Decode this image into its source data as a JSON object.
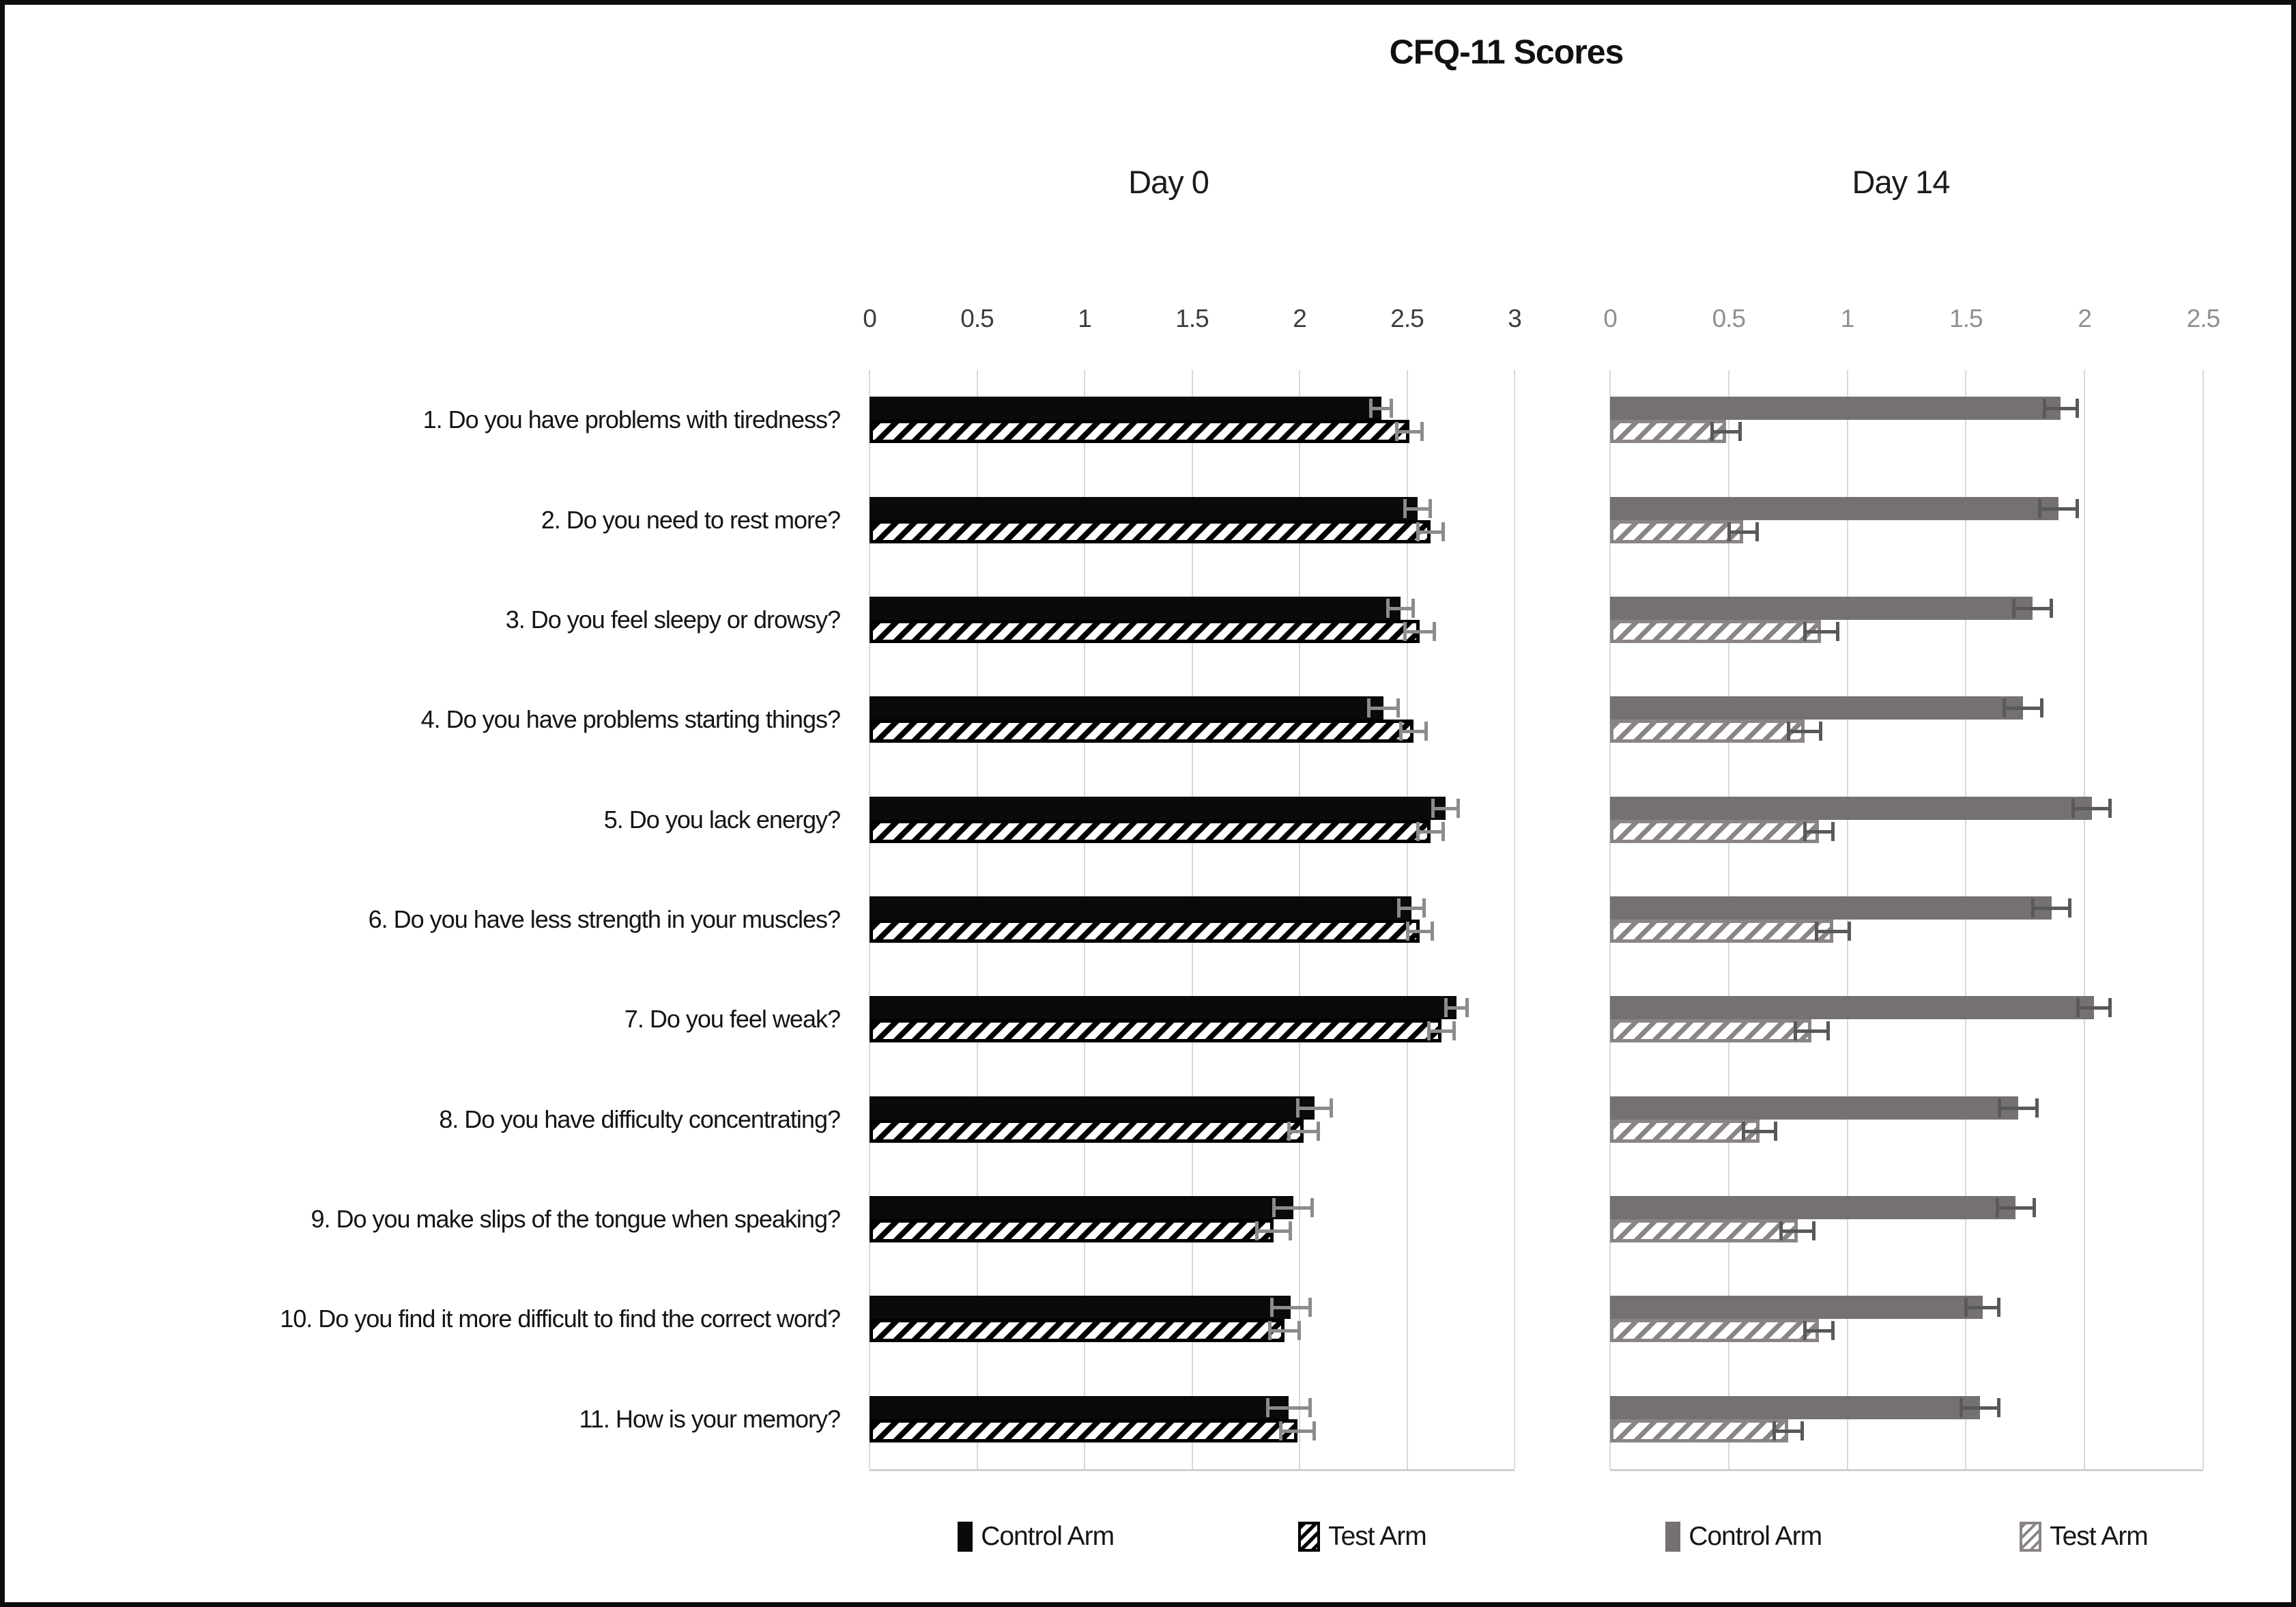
{
  "header": {
    "title": "CFQ-11 Scores"
  },
  "colors": {
    "day0_control_bar": "#0a0a0a",
    "day0_hatch": "#000000",
    "day14_control_bar": "#767171",
    "day14_hatch": "#8a8484",
    "day0_error_bar": "#8c8c8c",
    "day14_error_bar": "#595959",
    "gridline": "#d9d9d9",
    "day0_tick_text": "#3c3c3c",
    "day14_tick_text": "#8f8f8f"
  },
  "chart_data": [
    {
      "type": "bar",
      "orientation": "horizontal",
      "panel": "Day 0",
      "grid": true,
      "legend_position": "bottom",
      "xlim": [
        0,
        3
      ],
      "xticks": [
        0,
        0.5,
        1,
        1.5,
        2,
        2.5,
        3
      ],
      "xtick_labels": [
        "0",
        "0.5",
        "1",
        "1.5",
        "2",
        "2.5",
        "3"
      ],
      "categories": [
        "1. Do you have problems with tiredness?",
        "2. Do you need to rest more?",
        "3. Do you feel sleepy or drowsy?",
        "4. Do you have problems starting things?",
        "5. Do you lack energy?",
        "6. Do you have less strength in your muscles?",
        "7. Do you feel weak?",
        "8. Do you have difficulty concentrating?",
        "9. Do you make slips of the tongue when speaking?",
        "10. Do you find it more difficult to find the correct word?",
        "11. How is your memory?"
      ],
      "series": [
        {
          "name": "Control Arm",
          "style": "solid-black",
          "values": [
            2.38,
            2.55,
            2.47,
            2.39,
            2.68,
            2.52,
            2.73,
            2.07,
            1.97,
            1.96,
            1.95
          ],
          "errors": [
            0.05,
            0.06,
            0.06,
            0.07,
            0.06,
            0.06,
            0.05,
            0.08,
            0.09,
            0.09,
            0.1
          ]
        },
        {
          "name": "Test Arm",
          "style": "black-diagonal-hatch",
          "values": [
            2.51,
            2.61,
            2.56,
            2.53,
            2.61,
            2.56,
            2.66,
            2.02,
            1.88,
            1.93,
            1.99
          ],
          "errors": [
            0.06,
            0.06,
            0.07,
            0.06,
            0.06,
            0.06,
            0.06,
            0.07,
            0.08,
            0.07,
            0.08
          ]
        }
      ]
    },
    {
      "type": "bar",
      "orientation": "horizontal",
      "panel": "Day 14",
      "grid": true,
      "legend_position": "bottom",
      "xlim": [
        0,
        2.5
      ],
      "xticks": [
        0,
        0.5,
        1,
        1.5,
        2,
        2.5
      ],
      "xtick_labels": [
        "0",
        "0.5",
        "1",
        "1.5",
        "2",
        "2.5"
      ],
      "categories": [
        "1. Do you have problems with tiredness?",
        "2. Do you need to rest more?",
        "3. Do you feel sleepy or drowsy?",
        "4. Do you have problems starting things?",
        "5. Do you lack energy?",
        "6. Do you have less strength in your muscles?",
        "7. Do you feel weak?",
        "8. Do you have difficulty concentrating?",
        "9. Do you make slips of the tongue when speaking?",
        "10. Do you find it more difficult to find the correct word?",
        "11. How is your memory?"
      ],
      "series": [
        {
          "name": "Control Arm",
          "style": "solid-gray",
          "values": [
            1.9,
            1.89,
            1.78,
            1.74,
            2.03,
            1.86,
            2.04,
            1.72,
            1.71,
            1.57,
            1.56
          ],
          "errors": [
            0.07,
            0.08,
            0.08,
            0.08,
            0.08,
            0.08,
            0.07,
            0.08,
            0.08,
            0.07,
            0.08
          ]
        },
        {
          "name": "Test Arm",
          "style": "gray-diagonal-hatch",
          "values": [
            0.49,
            0.56,
            0.89,
            0.82,
            0.88,
            0.94,
            0.85,
            0.63,
            0.79,
            0.88,
            0.75
          ],
          "errors": [
            0.06,
            0.06,
            0.07,
            0.07,
            0.06,
            0.07,
            0.07,
            0.07,
            0.07,
            0.06,
            0.06
          ]
        }
      ]
    }
  ]
}
